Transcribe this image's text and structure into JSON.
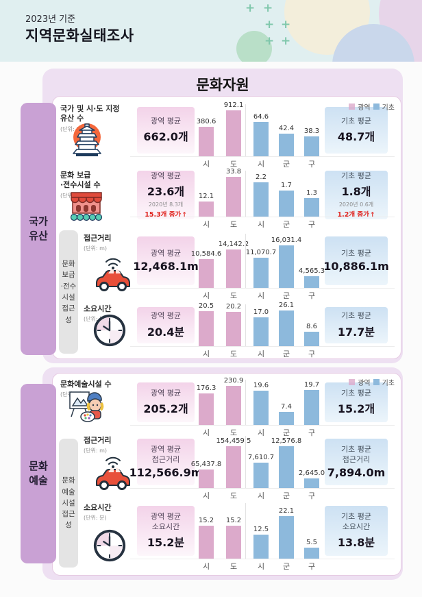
{
  "header": {
    "subtitle": "2023년 기준",
    "title": "지역문화실태조사"
  },
  "board_title": "문화자원",
  "legend": {
    "pink": "광역",
    "blue": "기초"
  },
  "sections": [
    {
      "side_label": "국가\n유산",
      "access_label": "문화\n보급\n·전수\n시설\n접근성"
    },
    {
      "side_label": "문화\n예술",
      "access_label": "문화\n예술\n시설\n접근성"
    }
  ],
  "colors": {
    "pink_bar": "#dcaacb",
    "blue_bar": "#8db9dc",
    "accent_purple": "#c9a1d4",
    "increase_red": "#e0231e"
  },
  "rows": [
    {
      "icon": "pagoda-icon",
      "title": "국가 및 시·도 지정\n유산 수",
      "unit": "(단위: 개)",
      "left_avg": {
        "label": "광역 평균",
        "value": "662.0개"
      },
      "right_avg": {
        "label": "기초 평균",
        "value": "48.7개"
      },
      "pink": {
        "labels": [
          "시",
          "도"
        ],
        "values": [
          380.6,
          912.1
        ],
        "heights": [
          43,
          68
        ]
      },
      "blue": {
        "labels": [
          "시",
          "군",
          "구"
        ],
        "values": [
          64.6,
          42.4,
          38.3
        ],
        "heights": [
          50,
          33,
          29
        ]
      }
    },
    {
      "icon": "theater-icon",
      "title": "문화 보급\n·전수시설 수",
      "unit": "(단위: 개)",
      "left_avg": {
        "label": "광역 평균",
        "value": "23.6개",
        "note": "2020년 8.3개",
        "change": "15.3개 증가"
      },
      "right_avg": {
        "label": "기초 평균",
        "value": "1.8개",
        "note": "2020년 0.6개",
        "change": "1.2개 증가"
      },
      "pink": {
        "labels": [
          "시",
          "도"
        ],
        "values": [
          12.1,
          33.8
        ],
        "heights": [
          22,
          62
        ]
      },
      "blue": {
        "labels": [
          "시",
          "군",
          "구"
        ],
        "values": [
          2.2,
          1.7,
          1.3
        ],
        "heights": [
          50,
          38,
          27
        ]
      }
    },
    {
      "icon": "car-icon",
      "title": "접근거리",
      "unit": "(단위: m)",
      "left_avg": {
        "label": "광역 평균",
        "value": "12,468.1m"
      },
      "right_avg": {
        "label": "기초 평균",
        "value": "10,886.1m"
      },
      "pink": {
        "labels": [
          "시",
          "도"
        ],
        "values": [
          10584.6,
          14142.2
        ],
        "heights": [
          42,
          56
        ]
      },
      "blue": {
        "labels": [
          "시",
          "군",
          "구"
        ],
        "values": [
          11070.7,
          16031.4,
          4565.3
        ],
        "heights": [
          44,
          62,
          17
        ]
      }
    },
    {
      "icon": "clock-icon",
      "title": "소요시간",
      "unit": "(단위: 분)",
      "left_avg": {
        "label": "광역 평균",
        "value": "20.4분"
      },
      "right_avg": {
        "label": "기초 평균",
        "value": "17.7분"
      },
      "pink": {
        "labels": [
          "시",
          "도"
        ],
        "values": [
          20.5,
          20.2
        ],
        "heights": [
          51,
          50
        ]
      },
      "blue": {
        "labels": [
          "시",
          "군",
          "구"
        ],
        "values": [
          17.0,
          26.1,
          8.6
        ],
        "heights": [
          42,
          63,
          21
        ]
      }
    },
    {
      "icon": "painter-icon",
      "title": "문화예술시설 수",
      "unit": "(단위: 개)",
      "left_avg": {
        "label": "광역 평균",
        "value": "205.2개"
      },
      "right_avg": {
        "label": "기초 평균",
        "value": "15.2개"
      },
      "pink": {
        "labels": [
          "시",
          "도"
        ],
        "values": [
          176.3,
          230.9
        ],
        "heights": [
          46,
          61
        ]
      },
      "blue": {
        "labels": [
          "시",
          "군",
          "구"
        ],
        "values": [
          19.6,
          7.4,
          19.7
        ],
        "heights": [
          50,
          19,
          51
        ]
      }
    },
    {
      "icon": "car-icon",
      "title": "접근거리",
      "unit": "(단위: m)",
      "left_avg": {
        "label": "광역 평균\n접근거리",
        "value": "112,566.9m"
      },
      "right_avg": {
        "label": "기초 평균\n접근거리",
        "value": "7,894.0m"
      },
      "pink": {
        "labels": [
          "시",
          "도"
        ],
        "values": [
          65437.8,
          154459.5
        ],
        "heights": [
          27,
          61
        ]
      },
      "blue": {
        "labels": [
          "시",
          "군",
          "구"
        ],
        "values": [
          7610.7,
          12576.8,
          2645.0
        ],
        "heights": [
          37,
          61,
          14
        ]
      }
    },
    {
      "icon": "clock-icon",
      "title": "소요시간",
      "unit": "(단위: 분)",
      "left_avg": {
        "label": "광역 평균\n소요시간",
        "value": "15.2분"
      },
      "right_avg": {
        "label": "기초 평균\n소요시간",
        "value": "13.8분"
      },
      "pink": {
        "labels": [
          "시",
          "도"
        ],
        "values": [
          15.2,
          15.2
        ],
        "heights": [
          48,
          48
        ]
      },
      "blue": {
        "labels": [
          "시",
          "군",
          "구"
        ],
        "values": [
          12.5,
          22.1,
          5.5
        ],
        "heights": [
          35,
          62,
          16
        ]
      }
    }
  ],
  "chart_data": [
    {
      "type": "bar",
      "title": "국가 및 시·도 지정 유산 수",
      "unit": "개",
      "legend_position": "top-right",
      "series": [
        {
          "name": "광역",
          "categories": [
            "시",
            "도"
          ],
          "values": [
            380.6,
            912.1
          ],
          "average": 662.0
        },
        {
          "name": "기초",
          "categories": [
            "시",
            "군",
            "구"
          ],
          "values": [
            64.6,
            42.4,
            38.3
          ],
          "average": 48.7
        }
      ]
    },
    {
      "type": "bar",
      "title": "문화 보급·전수시설 수",
      "unit": "개",
      "series": [
        {
          "name": "광역",
          "categories": [
            "시",
            "도"
          ],
          "values": [
            12.1,
            33.8
          ],
          "average": 23.6,
          "average_2020": 8.3,
          "change": "15.3개 증가"
        },
        {
          "name": "기초",
          "categories": [
            "시",
            "군",
            "구"
          ],
          "values": [
            2.2,
            1.7,
            1.3
          ],
          "average": 1.8,
          "average_2020": 0.6,
          "change": "1.2개 증가"
        }
      ]
    },
    {
      "type": "bar",
      "title": "문화 보급·전수시설 접근성 — 접근거리",
      "unit": "m",
      "series": [
        {
          "name": "광역",
          "categories": [
            "시",
            "도"
          ],
          "values": [
            10584.6,
            14142.2
          ],
          "average": 12468.1
        },
        {
          "name": "기초",
          "categories": [
            "시",
            "군",
            "구"
          ],
          "values": [
            11070.7,
            16031.4,
            4565.3
          ],
          "average": 10886.1
        }
      ]
    },
    {
      "type": "bar",
      "title": "문화 보급·전수시설 접근성 — 소요시간",
      "unit": "분",
      "series": [
        {
          "name": "광역",
          "categories": [
            "시",
            "도"
          ],
          "values": [
            20.5,
            20.2
          ],
          "average": 20.4
        },
        {
          "name": "기초",
          "categories": [
            "시",
            "군",
            "구"
          ],
          "values": [
            17.0,
            26.1,
            8.6
          ],
          "average": 17.7
        }
      ]
    },
    {
      "type": "bar",
      "title": "문화예술시설 수",
      "unit": "개",
      "legend_position": "top-right",
      "series": [
        {
          "name": "광역",
          "categories": [
            "시",
            "도"
          ],
          "values": [
            176.3,
            230.9
          ],
          "average": 205.2
        },
        {
          "name": "기초",
          "categories": [
            "시",
            "군",
            "구"
          ],
          "values": [
            19.6,
            7.4,
            19.7
          ],
          "average": 15.2
        }
      ]
    },
    {
      "type": "bar",
      "title": "문화예술시설 접근성 — 접근거리",
      "unit": "m",
      "series": [
        {
          "name": "광역",
          "categories": [
            "시",
            "도"
          ],
          "values": [
            65437.8,
            154459.5
          ],
          "average": 112566.9
        },
        {
          "name": "기초",
          "categories": [
            "시",
            "군",
            "구"
          ],
          "values": [
            7610.7,
            12576.8,
            2645.0
          ],
          "average": 7894.0
        }
      ]
    },
    {
      "type": "bar",
      "title": "문화예술시설 접근성 — 소요시간",
      "unit": "분",
      "series": [
        {
          "name": "광역",
          "categories": [
            "시",
            "도"
          ],
          "values": [
            15.2,
            15.2
          ],
          "average": 15.2
        },
        {
          "name": "기초",
          "categories": [
            "시",
            "군",
            "구"
          ],
          "values": [
            12.5,
            22.1,
            5.5
          ],
          "average": 13.8
        }
      ]
    }
  ]
}
